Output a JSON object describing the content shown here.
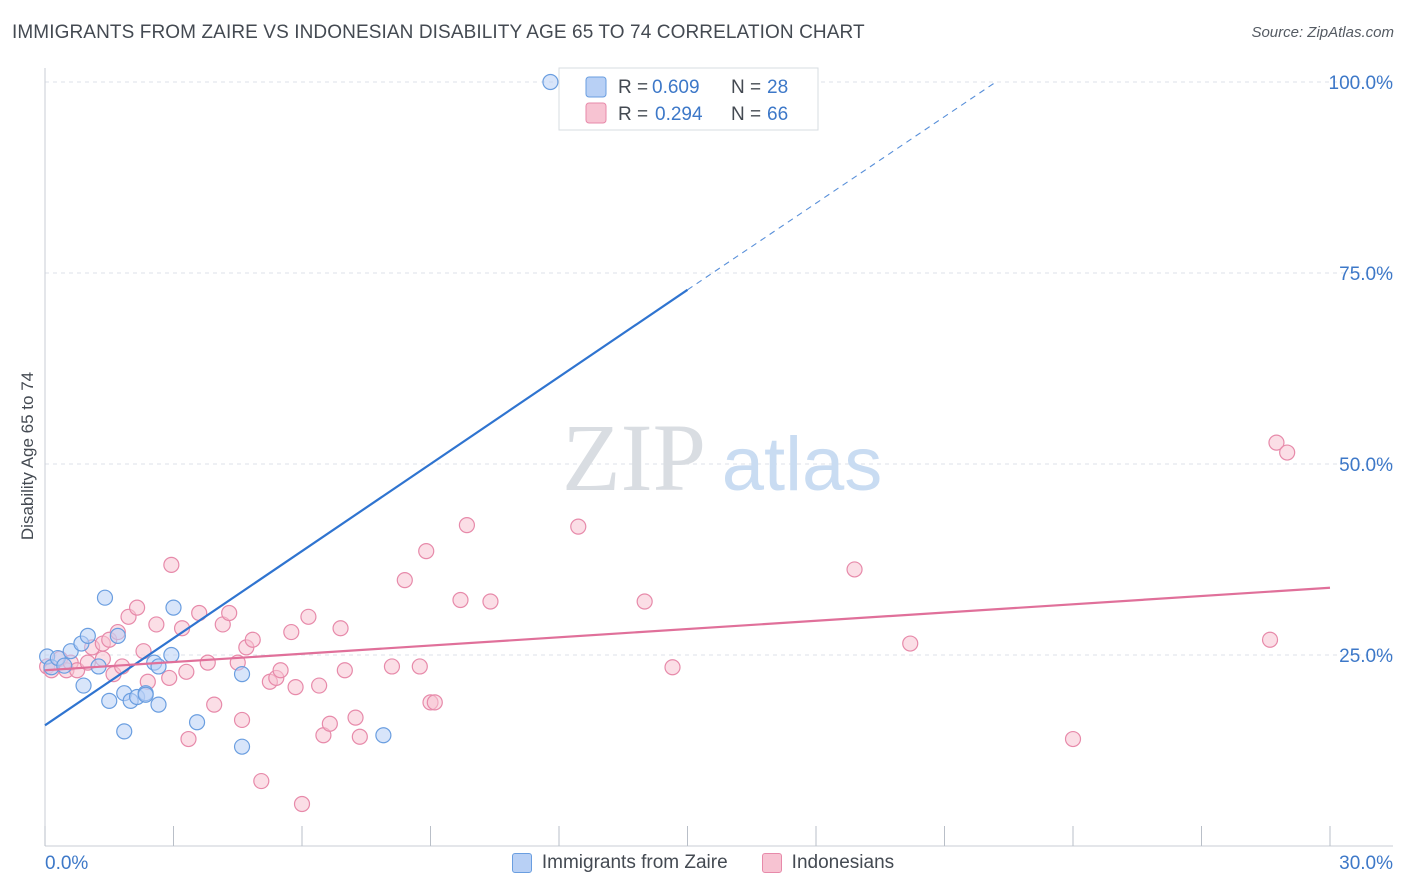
{
  "title": "IMMIGRANTS FROM ZAIRE VS INDONESIAN DISABILITY AGE 65 TO 74 CORRELATION CHART",
  "source": "Source: ZipAtlas.com",
  "watermark": {
    "zip": "ZIP",
    "atlas": "atlas"
  },
  "colors": {
    "blue_fill": "#b8d0f5",
    "blue_stroke": "#6a9ee0",
    "blue_line": "#2f74d0",
    "pink_fill": "#f7c3d2",
    "pink_stroke": "#e78aaa",
    "pink_line": "#e0709a",
    "tick_text": "#3d78c8",
    "grid": "#dde2e8"
  },
  "legend_top": [
    {
      "series": "zaire",
      "r_label": "R =",
      "r_value": "0.609",
      "n_label": "N =",
      "n_value": "28"
    },
    {
      "series": "indonesians",
      "r_label": "R =",
      "r_value": "0.294",
      "n_label": "N =",
      "n_value": "66"
    }
  ],
  "chart_data": {
    "type": "scatter",
    "title": "IMMIGRANTS FROM ZAIRE VS INDONESIAN DISABILITY AGE 65 TO 74 CORRELATION CHART",
    "xlabel": "",
    "ylabel": "Disability Age 65 to 74",
    "xlim": [
      0,
      30
    ],
    "ylim": [
      0,
      105
    ],
    "x_tick_labels": [
      "0.0%",
      "30.0%"
    ],
    "y_tick_labels": [
      "25.0%",
      "50.0%",
      "75.0%",
      "100.0%"
    ],
    "y_ticks": [
      25,
      50,
      75,
      100
    ],
    "series": [
      {
        "name": "Immigrants from Zaire",
        "color": "blue",
        "regression": {
          "x0": 0,
          "y0": 15.8,
          "x1": 15.0,
          "y1": 72.8,
          "dash_to_x": 22.2,
          "dash_to_y": 100.0
        },
        "points": [
          [
            0.05,
            24.8
          ],
          [
            0.15,
            23.4
          ],
          [
            0.3,
            24.6
          ],
          [
            0.45,
            23.6
          ],
          [
            0.6,
            25.5
          ],
          [
            0.85,
            26.5
          ],
          [
            1.0,
            27.5
          ],
          [
            1.25,
            23.5
          ],
          [
            0.9,
            21.0
          ],
          [
            1.4,
            32.5
          ],
          [
            1.5,
            19.0
          ],
          [
            1.7,
            27.5
          ],
          [
            1.85,
            15.0
          ],
          [
            1.85,
            20.0
          ],
          [
            2.0,
            19.0
          ],
          [
            2.15,
            19.5
          ],
          [
            2.35,
            20.0
          ],
          [
            2.35,
            19.8
          ],
          [
            2.55,
            24.0
          ],
          [
            2.65,
            23.5
          ],
          [
            2.65,
            18.5
          ],
          [
            2.95,
            25.0
          ],
          [
            3.0,
            31.2
          ],
          [
            3.55,
            16.2
          ],
          [
            4.6,
            22.5
          ],
          [
            4.6,
            13.0
          ],
          [
            7.9,
            14.5
          ],
          [
            11.8,
            100.0
          ]
        ]
      },
      {
        "name": "Indonesians",
        "color": "pink",
        "regression": {
          "x0": 0,
          "y0": 23.0,
          "x1": 30.0,
          "y1": 33.8
        },
        "points": [
          [
            0.05,
            23.5
          ],
          [
            0.15,
            23.0
          ],
          [
            0.35,
            24.5
          ],
          [
            0.5,
            23.0
          ],
          [
            0.6,
            24.0
          ],
          [
            0.75,
            23.0
          ],
          [
            1.0,
            24.0
          ],
          [
            1.1,
            26.0
          ],
          [
            1.35,
            24.5
          ],
          [
            1.35,
            26.5
          ],
          [
            1.5,
            27.0
          ],
          [
            1.6,
            22.5
          ],
          [
            1.7,
            28.0
          ],
          [
            1.8,
            23.5
          ],
          [
            1.95,
            30.0
          ],
          [
            2.15,
            31.2
          ],
          [
            2.3,
            25.5
          ],
          [
            2.4,
            21.5
          ],
          [
            2.6,
            29.0
          ],
          [
            2.9,
            22.0
          ],
          [
            2.95,
            36.8
          ],
          [
            3.2,
            28.5
          ],
          [
            3.3,
            22.8
          ],
          [
            3.35,
            14.0
          ],
          [
            3.6,
            30.5
          ],
          [
            3.8,
            24.0
          ],
          [
            3.95,
            18.5
          ],
          [
            4.15,
            29.0
          ],
          [
            4.3,
            30.5
          ],
          [
            4.5,
            24.0
          ],
          [
            4.6,
            16.5
          ],
          [
            4.7,
            26.0
          ],
          [
            4.85,
            27.0
          ],
          [
            5.05,
            8.5
          ],
          [
            5.25,
            21.5
          ],
          [
            5.4,
            22.0
          ],
          [
            5.5,
            23.0
          ],
          [
            5.75,
            28.0
          ],
          [
            5.85,
            20.8
          ],
          [
            6.0,
            5.5
          ],
          [
            6.15,
            30.0
          ],
          [
            6.4,
            21.0
          ],
          [
            6.5,
            14.5
          ],
          [
            6.65,
            16.0
          ],
          [
            6.9,
            28.5
          ],
          [
            7.0,
            23.0
          ],
          [
            7.25,
            16.8
          ],
          [
            7.35,
            14.3
          ],
          [
            8.1,
            23.5
          ],
          [
            8.4,
            34.8
          ],
          [
            8.75,
            23.5
          ],
          [
            8.9,
            38.6
          ],
          [
            9.0,
            18.8
          ],
          [
            9.1,
            18.8
          ],
          [
            9.7,
            32.2
          ],
          [
            9.85,
            42.0
          ],
          [
            10.4,
            32.0
          ],
          [
            12.45,
            41.8
          ],
          [
            14.0,
            32.0
          ],
          [
            14.65,
            23.4
          ],
          [
            18.9,
            36.2
          ],
          [
            20.2,
            26.5
          ],
          [
            24.0,
            14.0
          ],
          [
            28.6,
            27.0
          ],
          [
            28.75,
            52.8
          ],
          [
            29.0,
            51.5
          ]
        ]
      }
    ]
  }
}
